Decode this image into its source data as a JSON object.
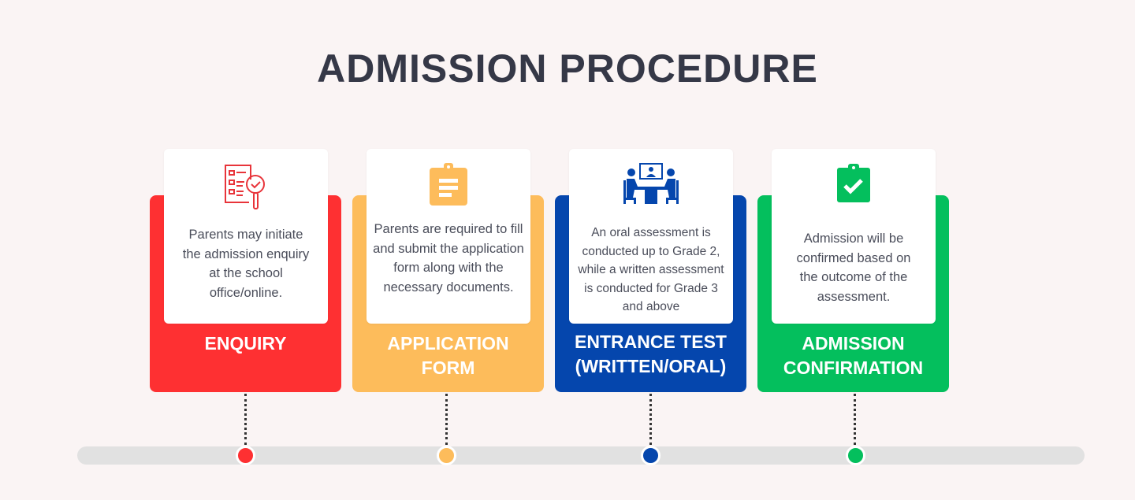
{
  "title": "ADMISSION PROCEDURE",
  "steps": [
    {
      "label": "ENQUIRY",
      "description": "Parents may initiate the admission enquiry at the school office/online.",
      "color": "#fe3032",
      "icon": "checklist-magnifier-icon"
    },
    {
      "label": "APPLICATION FORM",
      "description": "Parents are required to fill and submit the application form along with the necessary documents.",
      "color": "#fdbc5b",
      "icon": "clipboard-icon"
    },
    {
      "label": "ENTRANCE TEST (WRITTEN/ORAL)",
      "description": "An oral assessment is conducted up to Grade 2, while a written assessment is conducted for Grade 3 and above",
      "color": "#0546ad",
      "icon": "interview-icon"
    },
    {
      "label": "ADMISSION CONFIRMATION",
      "description": "Admission will be confirmed based on the outcome of the assessment.",
      "color": "#04bf5d",
      "icon": "clipboard-check-icon"
    }
  ]
}
